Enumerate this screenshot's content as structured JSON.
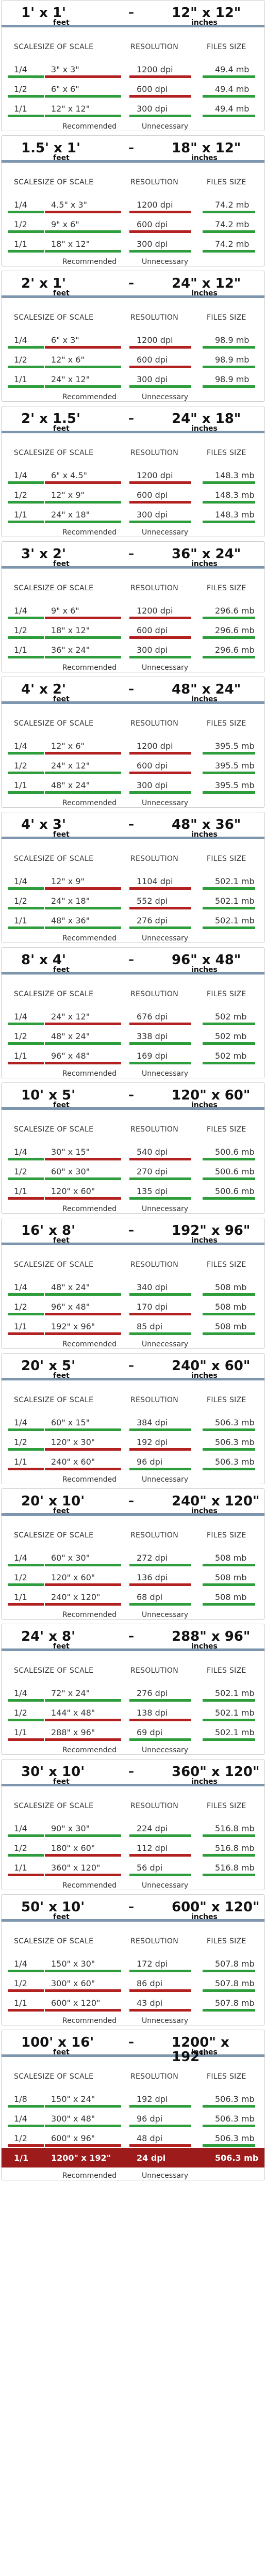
{
  "labels": {
    "feet": "feet",
    "inches": "inches",
    "dash": "–",
    "col_scale": "SCALE",
    "col_size": "SIZE OF SCALE",
    "col_res": "RESOLUTION",
    "col_files": "FILES SIZE",
    "recommended": "Recommended",
    "unnecessary": "Unnecessary"
  },
  "colors": {
    "recommended": "#2e9e3c",
    "unnecessary": "#b32020",
    "header_rule": "#7d96ae",
    "highlight": "#9e1b1b"
  },
  "cards": [
    {
      "feet": "1' x 1'",
      "inches": "12\" x 12\"",
      "rows": [
        {
          "scale": "1/4",
          "size": "3\" x 3\"",
          "res": "1200 dpi",
          "file": "49.4 mb",
          "u": [
            "g",
            "r",
            "r",
            "g"
          ]
        },
        {
          "scale": "1/2",
          "size": "6\" x 6\"",
          "res": "600 dpi",
          "file": "49.4 mb",
          "u": [
            "g",
            "g",
            "r",
            "g"
          ]
        },
        {
          "scale": "1/1",
          "size": "12\" x 12\"",
          "res": "300 dpi",
          "file": "49.4 mb",
          "u": [
            "g",
            "g",
            "g",
            "g"
          ]
        }
      ]
    },
    {
      "feet": "1.5' x 1'",
      "inches": "18\" x 12\"",
      "rows": [
        {
          "scale": "1/4",
          "size": "4.5\" x 3\"",
          "res": "1200 dpi",
          "file": "74.2 mb",
          "u": [
            "g",
            "r",
            "r",
            "g"
          ]
        },
        {
          "scale": "1/2",
          "size": "9\" x 6\"",
          "res": "600 dpi",
          "file": "74.2 mb",
          "u": [
            "g",
            "g",
            "r",
            "g"
          ]
        },
        {
          "scale": "1/1",
          "size": "18\" x 12\"",
          "res": "300 dpi",
          "file": "74.2 mb",
          "u": [
            "g",
            "g",
            "g",
            "g"
          ]
        }
      ]
    },
    {
      "feet": "2' x 1'",
      "inches": "24\" x 12\"",
      "rows": [
        {
          "scale": "1/4",
          "size": "6\" x 3\"",
          "res": "1200 dpi",
          "file": "98.9 mb",
          "u": [
            "g",
            "r",
            "r",
            "g"
          ]
        },
        {
          "scale": "1/2",
          "size": "12\" x 6\"",
          "res": "600 dpi",
          "file": "98.9 mb",
          "u": [
            "g",
            "g",
            "r",
            "g"
          ]
        },
        {
          "scale": "1/1",
          "size": "24\" x 12\"",
          "res": "300 dpi",
          "file": "98.9 mb",
          "u": [
            "g",
            "g",
            "g",
            "g"
          ]
        }
      ]
    },
    {
      "feet": "2' x 1.5'",
      "inches": "24\" x 18\"",
      "rows": [
        {
          "scale": "1/4",
          "size": "6\" x 4.5\"",
          "res": "1200 dpi",
          "file": "148.3 mb",
          "u": [
            "g",
            "r",
            "r",
            "g"
          ]
        },
        {
          "scale": "1/2",
          "size": "12\" x 9\"",
          "res": "600 dpi",
          "file": "148.3 mb",
          "u": [
            "g",
            "g",
            "r",
            "g"
          ]
        },
        {
          "scale": "1/1",
          "size": "24\" x 18\"",
          "res": "300 dpi",
          "file": "148.3 mb",
          "u": [
            "g",
            "g",
            "g",
            "g"
          ]
        }
      ]
    },
    {
      "feet": "3' x 2'",
      "inches": "36\" x 24\"",
      "rows": [
        {
          "scale": "1/4",
          "size": "9\" x 6\"",
          "res": "1200 dpi",
          "file": "296.6 mb",
          "u": [
            "g",
            "r",
            "r",
            "g"
          ]
        },
        {
          "scale": "1/2",
          "size": "18\" x 12\"",
          "res": "600 dpi",
          "file": "296.6 mb",
          "u": [
            "g",
            "g",
            "r",
            "g"
          ]
        },
        {
          "scale": "1/1",
          "size": "36\" x 24\"",
          "res": "300 dpi",
          "file": "296.6 mb",
          "u": [
            "g",
            "g",
            "g",
            "g"
          ]
        }
      ]
    },
    {
      "feet": "4' x 2'",
      "inches": "48\" x 24\"",
      "rows": [
        {
          "scale": "1/4",
          "size": "12\" x 6\"",
          "res": "1200 dpi",
          "file": "395.5 mb",
          "u": [
            "g",
            "r",
            "r",
            "g"
          ]
        },
        {
          "scale": "1/2",
          "size": "24\" x 12\"",
          "res": "600 dpi",
          "file": "395.5 mb",
          "u": [
            "g",
            "g",
            "r",
            "g"
          ]
        },
        {
          "scale": "1/1",
          "size": "48\" x 24\"",
          "res": "300 dpi",
          "file": "395.5 mb",
          "u": [
            "g",
            "g",
            "g",
            "g"
          ]
        }
      ]
    },
    {
      "feet": "4' x 3'",
      "inches": "48\" x 36\"",
      "rows": [
        {
          "scale": "1/4",
          "size": "12\" x 9\"",
          "res": "1104 dpi",
          "file": "502.1 mb",
          "u": [
            "g",
            "r",
            "r",
            "g"
          ]
        },
        {
          "scale": "1/2",
          "size": "24\" x 18\"",
          "res": "552 dpi",
          "file": "502.1 mb",
          "u": [
            "g",
            "g",
            "r",
            "g"
          ]
        },
        {
          "scale": "1/1",
          "size": "48\" x 36\"",
          "res": "276 dpi",
          "file": "502.1 mb",
          "u": [
            "g",
            "g",
            "g",
            "g"
          ]
        }
      ]
    },
    {
      "feet": "8' x 4'",
      "inches": "96\" x 48\"",
      "rows": [
        {
          "scale": "1/4",
          "size": "24\" x 12\"",
          "res": "676 dpi",
          "file": "502 mb",
          "u": [
            "g",
            "r",
            "r",
            "g"
          ]
        },
        {
          "scale": "1/2",
          "size": "48\" x 24\"",
          "res": "338 dpi",
          "file": "502 mb",
          "u": [
            "g",
            "g",
            "g",
            "g"
          ]
        },
        {
          "scale": "1/1",
          "size": "96\" x 48\"",
          "res": "169 dpi",
          "file": "502 mb",
          "u": [
            "r",
            "r",
            "g",
            "g"
          ]
        }
      ]
    },
    {
      "feet": "10' x 5'",
      "inches": "120\" x 60\"",
      "rows": [
        {
          "scale": "1/4",
          "size": "30\" x 15\"",
          "res": "540 dpi",
          "file": "500.6 mb",
          "u": [
            "g",
            "r",
            "r",
            "g"
          ]
        },
        {
          "scale": "1/2",
          "size": "60\" x 30\"",
          "res": "270 dpi",
          "file": "500.6 mb",
          "u": [
            "g",
            "g",
            "g",
            "g"
          ]
        },
        {
          "scale": "1/1",
          "size": "120\" x 60\"",
          "res": "135 dpi",
          "file": "500.6 mb",
          "u": [
            "r",
            "r",
            "g",
            "g"
          ]
        }
      ]
    },
    {
      "feet": "16' x 8'",
      "inches": "192\" x 96\"",
      "rows": [
        {
          "scale": "1/4",
          "size": "48\" x 24\"",
          "res": "340 dpi",
          "file": "508 mb",
          "u": [
            "g",
            "g",
            "g",
            "g"
          ]
        },
        {
          "scale": "1/2",
          "size": "96\" x 48\"",
          "res": "170 dpi",
          "file": "508 mb",
          "u": [
            "g",
            "r",
            "r",
            "g"
          ]
        },
        {
          "scale": "1/1",
          "size": "192\" x 96\"",
          "res": "85 dpi",
          "file": "508 mb",
          "u": [
            "r",
            "r",
            "g",
            "g"
          ]
        }
      ]
    },
    {
      "feet": "20' x 5'",
      "inches": "240\" x 60\"",
      "rows": [
        {
          "scale": "1/4",
          "size": "60\" x 15\"",
          "res": "384 dpi",
          "file": "506.3 mb",
          "u": [
            "g",
            "g",
            "g",
            "g"
          ]
        },
        {
          "scale": "1/2",
          "size": "120\" x 30\"",
          "res": "192 dpi",
          "file": "506.3 mb",
          "u": [
            "g",
            "r",
            "r",
            "g"
          ]
        },
        {
          "scale": "1/1",
          "size": "240\" x 60\"",
          "res": "96 dpi",
          "file": "506.3 mb",
          "u": [
            "r",
            "r",
            "g",
            "g"
          ]
        }
      ]
    },
    {
      "feet": "20' x 10'",
      "inches": "240\" x 120\"",
      "rows": [
        {
          "scale": "1/4",
          "size": "60\" x 30\"",
          "res": "272 dpi",
          "file": "508 mb",
          "u": [
            "g",
            "g",
            "g",
            "g"
          ]
        },
        {
          "scale": "1/2",
          "size": "120\" x 60\"",
          "res": "136 dpi",
          "file": "508 mb",
          "u": [
            "g",
            "r",
            "r",
            "g"
          ]
        },
        {
          "scale": "1/1",
          "size": "240\" x 120\"",
          "res": "68 dpi",
          "file": "508 mb",
          "u": [
            "r",
            "r",
            "g",
            "g"
          ]
        }
      ]
    },
    {
      "feet": "24' x 8'",
      "inches": "288\" x 96\"",
      "rows": [
        {
          "scale": "1/4",
          "size": "72\" x 24\"",
          "res": "276 dpi",
          "file": "502.1 mb",
          "u": [
            "g",
            "g",
            "g",
            "g"
          ]
        },
        {
          "scale": "1/2",
          "size": "144\" x 48\"",
          "res": "138 dpi",
          "file": "502.1 mb",
          "u": [
            "g",
            "r",
            "r",
            "g"
          ]
        },
        {
          "scale": "1/1",
          "size": "288\" x 96\"",
          "res": "69 dpi",
          "file": "502.1 mb",
          "u": [
            "r",
            "r",
            "g",
            "g"
          ]
        }
      ]
    },
    {
      "feet": "30' x 10'",
      "inches": "360\" x 120\"",
      "rows": [
        {
          "scale": "1/4",
          "size": "90\" x 30\"",
          "res": "224 dpi",
          "file": "516.8 mb",
          "u": [
            "g",
            "g",
            "g",
            "g"
          ]
        },
        {
          "scale": "1/2",
          "size": "180\" x 60\"",
          "res": "112 dpi",
          "file": "516.8 mb",
          "u": [
            "g",
            "r",
            "r",
            "g"
          ]
        },
        {
          "scale": "1/1",
          "size": "360\" x 120\"",
          "res": "56 dpi",
          "file": "516.8 mb",
          "u": [
            "r",
            "r",
            "g",
            "g"
          ]
        }
      ]
    },
    {
      "feet": "50' x 10'",
      "inches": "600\" x 120\"",
      "rows": [
        {
          "scale": "1/4",
          "size": "150\" x 30\"",
          "res": "172 dpi",
          "file": "507.8 mb",
          "u": [
            "g",
            "g",
            "g",
            "g"
          ]
        },
        {
          "scale": "1/2",
          "size": "300\" x 60\"",
          "res": "86 dpi",
          "file": "507.8 mb",
          "u": [
            "r",
            "r",
            "r",
            "g"
          ]
        },
        {
          "scale": "1/1",
          "size": "600\" x 120\"",
          "res": "43 dpi",
          "file": "507.8 mb",
          "u": [
            "r",
            "r",
            "r",
            "g"
          ]
        }
      ]
    },
    {
      "feet": "100' x 16'",
      "inches": "1200\" x 192\"",
      "rows": [
        {
          "scale": "1/8",
          "size": "150\" x 24\"",
          "res": "192 dpi",
          "file": "506.3 mb",
          "u": [
            "g",
            "g",
            "g",
            "g"
          ]
        },
        {
          "scale": "1/4",
          "size": "300\" x 48\"",
          "res": "96 dpi",
          "file": "506.3 mb",
          "u": [
            "g",
            "g",
            "g",
            "g"
          ]
        },
        {
          "scale": "1/2",
          "size": "600\" x 96\"",
          "res": "48 dpi",
          "file": "506.3 mb",
          "u": [
            "r",
            "r",
            "r",
            "g"
          ]
        },
        {
          "scale": "1/1",
          "size": "1200\" x 192\"",
          "res": "24 dpi",
          "file": "506.3 mb",
          "u": [],
          "highlight": true
        }
      ]
    }
  ]
}
